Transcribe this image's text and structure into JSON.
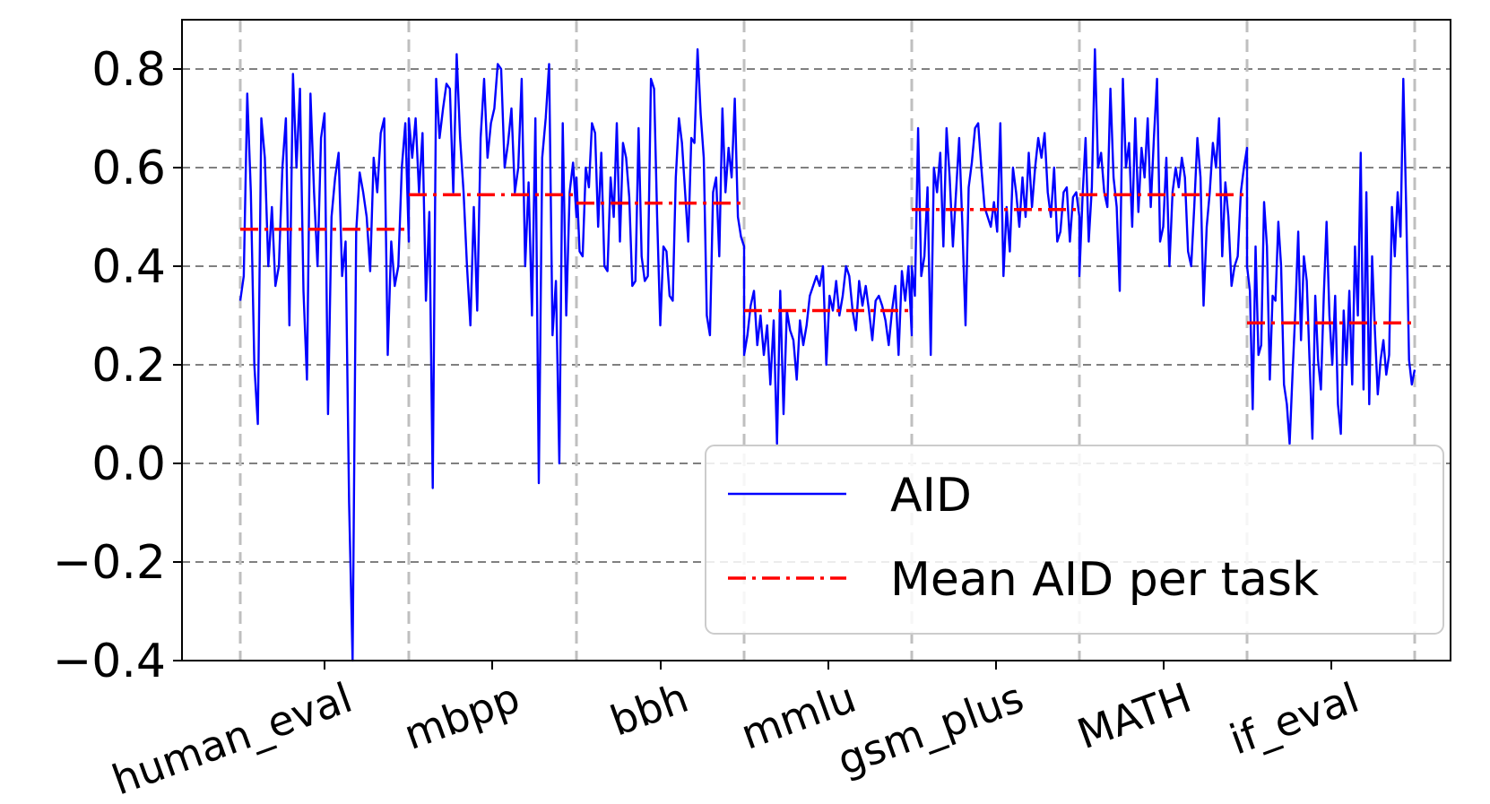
{
  "chart_data": {
    "type": "line",
    "title": "",
    "xlabel": "",
    "ylabel": "",
    "ylim": [
      -0.4,
      0.9
    ],
    "yticks": [
      -0.4,
      -0.2,
      0.0,
      0.2,
      0.4,
      0.6,
      0.8
    ],
    "ytick_labels": [
      "−0.4",
      "−0.2",
      "0.0",
      "0.2",
      "0.4",
      "0.6",
      "0.8"
    ],
    "grid": true,
    "legend_position": "bottom-right",
    "categories": [
      "human_eval",
      "mbpp",
      "bbh",
      "mmlu",
      "gsm_plus",
      "MATH",
      "if_eval"
    ],
    "series": [
      {
        "name": "AID",
        "color": "#0000ff",
        "style": "solid",
        "segments": [
          [
            0.33,
            0.38,
            0.75,
            0.55,
            0.2,
            0.08,
            0.7,
            0.62,
            0.4,
            0.52,
            0.36,
            0.4,
            0.6,
            0.7,
            0.28,
            0.79,
            0.6,
            0.76,
            0.35,
            0.17,
            0.75,
            0.55,
            0.4,
            0.66,
            0.71,
            0.1,
            0.5,
            0.58,
            0.63,
            0.38,
            0.45,
            -0.08,
            -0.4,
            0.47,
            0.59,
            0.55,
            0.5,
            0.39,
            0.62,
            0.55,
            0.67,
            0.7,
            0.22,
            0.45,
            0.36,
            0.4,
            0.6,
            0.69,
            0.45
          ],
          [
            0.7,
            0.62,
            0.7,
            0.55,
            0.67,
            0.33,
            0.51,
            -0.05,
            0.78,
            0.66,
            0.72,
            0.77,
            0.76,
            0.55,
            0.83,
            0.66,
            0.55,
            0.4,
            0.28,
            0.52,
            0.31,
            0.66,
            0.78,
            0.62,
            0.69,
            0.72,
            0.81,
            0.8,
            0.6,
            0.65,
            0.72,
            0.55,
            0.6,
            0.78,
            0.4,
            0.57,
            0.3,
            0.7,
            -0.04,
            0.62,
            0.7,
            0.81,
            0.26,
            0.37,
            0.0,
            0.69,
            0.3,
            0.55,
            0.61,
            0.5
          ],
          [
            0.58,
            0.43,
            0.42,
            0.6,
            0.56,
            0.69,
            0.67,
            0.48,
            0.63,
            0.4,
            0.39,
            0.58,
            0.5,
            0.69,
            0.45,
            0.65,
            0.62,
            0.54,
            0.36,
            0.37,
            0.68,
            0.42,
            0.37,
            0.38,
            0.78,
            0.76,
            0.5,
            0.28,
            0.44,
            0.43,
            0.34,
            0.33,
            0.58,
            0.7,
            0.65,
            0.55,
            0.45,
            0.66,
            0.65,
            0.84,
            0.71,
            0.62,
            0.3,
            0.26,
            0.55,
            0.58,
            0.42,
            0.72,
            0.55,
            0.64,
            0.58,
            0.74,
            0.5,
            0.46,
            0.44
          ],
          [
            0.22,
            0.26,
            0.32,
            0.35,
            0.24,
            0.3,
            0.22,
            0.28,
            0.16,
            0.29,
            0.04,
            0.35,
            0.1,
            0.31,
            0.27,
            0.25,
            0.17,
            0.29,
            0.24,
            0.28,
            0.34,
            0.36,
            0.38,
            0.36,
            0.4,
            0.2,
            0.34,
            0.31,
            0.37,
            0.3,
            0.34,
            0.4,
            0.38,
            0.31,
            0.27,
            0.37,
            0.32,
            0.36,
            0.31,
            0.25,
            0.33,
            0.34,
            0.32,
            0.29,
            0.24,
            0.31,
            0.36,
            0.22,
            0.39,
            0.33,
            0.4,
            0.26
          ],
          [
            0.4,
            0.34,
            0.68,
            0.38,
            0.42,
            0.56,
            0.22,
            0.6,
            0.55,
            0.63,
            0.44,
            0.68,
            0.58,
            0.44,
            0.55,
            0.66,
            0.48,
            0.28,
            0.56,
            0.61,
            0.68,
            0.69,
            0.6,
            0.52,
            0.5,
            0.48,
            0.53,
            0.47,
            0.69,
            0.38,
            0.52,
            0.43,
            0.6,
            0.55,
            0.48,
            0.58,
            0.5,
            0.63,
            0.52,
            0.6,
            0.66,
            0.62,
            0.67,
            0.55,
            0.5,
            0.6,
            0.45,
            0.47,
            0.55,
            0.56,
            0.45,
            0.54,
            0.55,
            0.5
          ],
          [
            0.38,
            0.54,
            0.66,
            0.45,
            0.56,
            0.84,
            0.6,
            0.63,
            0.55,
            0.52,
            0.76,
            0.58,
            0.52,
            0.35,
            0.78,
            0.6,
            0.65,
            0.48,
            0.7,
            0.51,
            0.64,
            0.58,
            0.7,
            0.52,
            0.66,
            0.78,
            0.45,
            0.48,
            0.62,
            0.4,
            0.55,
            0.6,
            0.56,
            0.62,
            0.58,
            0.43,
            0.4,
            0.52,
            0.66,
            0.58,
            0.32,
            0.48,
            0.55,
            0.65,
            0.6,
            0.7,
            0.42,
            0.57,
            0.5,
            0.36,
            0.4,
            0.42,
            0.55,
            0.6,
            0.64
          ],
          [
            0.4,
            0.35,
            0.11,
            0.44,
            0.22,
            0.24,
            0.53,
            0.44,
            0.17,
            0.34,
            0.33,
            0.49,
            0.4,
            0.16,
            0.12,
            0.04,
            0.18,
            0.31,
            0.47,
            0.25,
            0.42,
            0.37,
            0.21,
            0.05,
            0.34,
            0.21,
            0.15,
            0.34,
            0.49,
            0.3,
            0.2,
            0.34,
            0.12,
            0.06,
            0.31,
            0.2,
            0.35,
            0.16,
            0.44,
            0.3,
            0.63,
            0.15,
            0.55,
            0.12,
            0.42,
            0.27,
            0.14,
            0.21,
            0.25,
            0.18,
            0.22,
            0.52,
            0.42,
            0.55,
            0.46,
            0.78,
            0.52,
            0.21,
            0.16,
            0.19
          ]
        ]
      },
      {
        "name": "Mean AID per task",
        "color": "#ff0000",
        "style": "dashdot",
        "values": [
          0.475,
          0.545,
          0.528,
          0.31,
          0.515,
          0.545,
          0.285
        ]
      }
    ]
  }
}
